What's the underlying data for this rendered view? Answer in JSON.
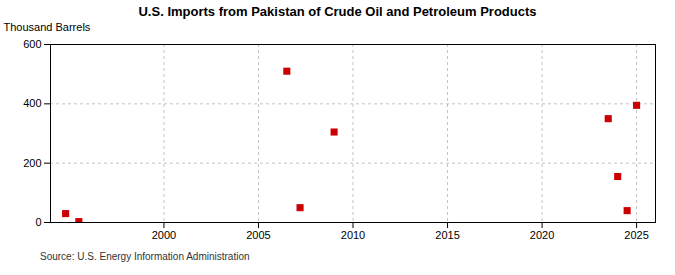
{
  "chart_data": {
    "type": "scatter",
    "title": "U.S. Imports from Pakistan of Crude Oil and Petroleum Products",
    "ylabel": "Thousand Barrels",
    "caption": "Source: U.S. Energy Information Administration",
    "x": [
      1994.8,
      1995.5,
      2006.5,
      2007.2,
      2009.0,
      2023.5,
      2024.0,
      2024.5,
      2025.0
    ],
    "values": [
      30,
      3,
      510,
      50,
      305,
      350,
      155,
      40,
      395
    ],
    "color": "#cc0000",
    "marker": "square",
    "xlim": [
      1994,
      2026
    ],
    "xticks": [
      2000,
      2005,
      2010,
      2015,
      2020,
      2025
    ],
    "ylim": [
      0,
      600
    ],
    "yticks": [
      0,
      200,
      400,
      600
    ],
    "grid": true
  }
}
